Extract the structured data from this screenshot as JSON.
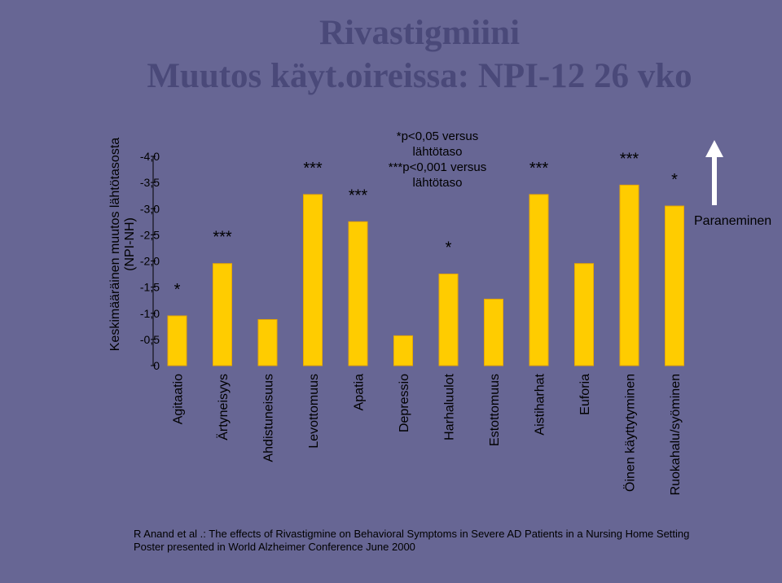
{
  "title": {
    "line1": "Rivastigmiini",
    "line2": "Muutos käyt.oireissa: NPI-12 26 vko"
  },
  "colors": {
    "background": "#676694",
    "bar": "#ffcc00",
    "bar_stroke": "#e8a800",
    "title": "#4a4979",
    "arrow": "#ffffff"
  },
  "chart_data": {
    "type": "bar",
    "ylabel": "Keskimääräinen muutos lähtötasosta (NPI-NH)",
    "ylabel_lines": [
      "Keskimääräinen muutos lähtötasosta",
      "(NPI-NH)"
    ],
    "yticks": [
      "-4,0",
      "-3,5",
      "-3,0",
      "-2,5",
      "-2,0",
      "-1,5",
      "-1,0",
      "-0,5",
      "0"
    ],
    "ylim": [
      0,
      -4.0
    ],
    "y_axis_inverted": true,
    "categories": [
      "Agitaatio",
      "Ärtyneisyys",
      "Ahdistuneisuus",
      "Levottomuus",
      "Apatia",
      "Depressio",
      "Harhaluulot",
      "Estottomuus",
      "Aistiharhat",
      "Euforia",
      "Öinen käyttytyminen",
      "Ruokahalu/syöminen"
    ],
    "values": [
      -0.95,
      -1.95,
      -0.88,
      -3.27,
      -2.75,
      -0.57,
      -1.75,
      -1.27,
      -3.27,
      -1.95,
      -3.45,
      -3.05
    ],
    "significance": [
      "*",
      "***",
      "",
      "***",
      "***",
      "",
      "*",
      "",
      "***",
      "",
      "***",
      "*"
    ],
    "annotation": "*p<0,05 versus\nlähtötaso\n***p<0,001 versus\nlähtötaso",
    "arrow_label": "Paraneminen"
  },
  "citation": {
    "line1": "R Anand et al .: The effects of Rivastigmine on Behavioral Symptoms in Severe AD Patients in a Nursing Home Setting",
    "line2": "Poster presented in World Alzheimer Conference June 2000"
  }
}
